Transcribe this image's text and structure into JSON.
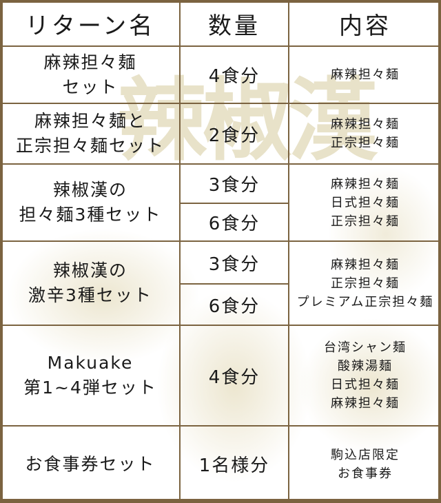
{
  "watermark_logo": "辣椒漢",
  "colors": {
    "border": "#7b6340",
    "dragon": "#d6c896"
  },
  "headers": [
    "リターン名",
    "数量",
    "内容"
  ],
  "rows": [
    {
      "name": [
        "麻辣担々麺",
        "セット"
      ],
      "quantities": [
        "4食分"
      ],
      "contents": [
        "麻辣担々麺"
      ]
    },
    {
      "name": [
        "麻辣担々麺と",
        "正宗担々麺セット"
      ],
      "quantities": [
        "2食分"
      ],
      "contents": [
        "麻辣担々麺",
        "正宗担々麺"
      ]
    },
    {
      "name": [
        "辣椒漢の",
        "担々麺3種セット"
      ],
      "quantities": [
        "3食分",
        "6食分"
      ],
      "contents": [
        "麻辣担々麺",
        "日式担々麺",
        "正宗担々麺"
      ]
    },
    {
      "name": [
        "辣椒漢の",
        "激辛3種セット"
      ],
      "quantities": [
        "3食分",
        "6食分"
      ],
      "contents": [
        "麻辣担々麺",
        "正宗担々麺",
        "プレミアム正宗担々麺"
      ]
    },
    {
      "name": [
        "Makuake",
        "第1~4弾セット"
      ],
      "quantities": [
        "4食分"
      ],
      "contents": [
        "台湾シャン麺",
        "酸辣湯麺",
        "日式担々麺",
        "麻辣担々麺"
      ]
    },
    {
      "name": [
        "お食事券セット"
      ],
      "quantities": [
        "1名様分"
      ],
      "contents": [
        "駒込店限定",
        "お食事券"
      ]
    }
  ]
}
